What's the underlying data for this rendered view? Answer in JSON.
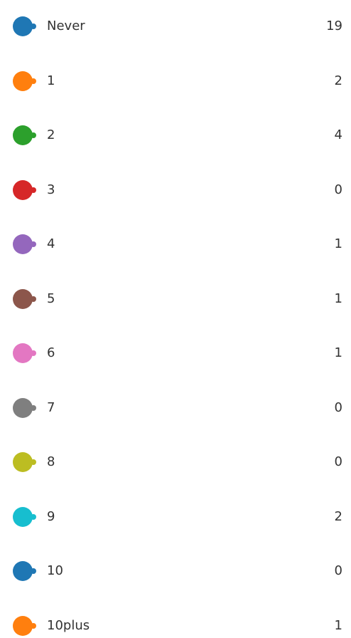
{
  "legend": {
    "items": [
      {
        "label": "Never",
        "count": 19,
        "color": "#1f77b4"
      },
      {
        "label": "1",
        "count": 2,
        "color": "#ff7f0e"
      },
      {
        "label": "2",
        "count": 4,
        "color": "#2ca02c"
      },
      {
        "label": "3",
        "count": 0,
        "color": "#d62728"
      },
      {
        "label": "4",
        "count": 1,
        "color": "#9467bd"
      },
      {
        "label": "5",
        "count": 1,
        "color": "#8c564b"
      },
      {
        "label": "6",
        "count": 1,
        "color": "#e377c2"
      },
      {
        "label": "7",
        "count": 0,
        "color": "#7f7f7f"
      },
      {
        "label": "8",
        "count": 0,
        "color": "#bcbd22"
      },
      {
        "label": "9",
        "count": 2,
        "color": "#17becf"
      },
      {
        "label": "10",
        "count": 0,
        "color": "#1f77b4"
      },
      {
        "label": "10plus",
        "count": 1,
        "color": "#ff7f0e"
      }
    ]
  }
}
